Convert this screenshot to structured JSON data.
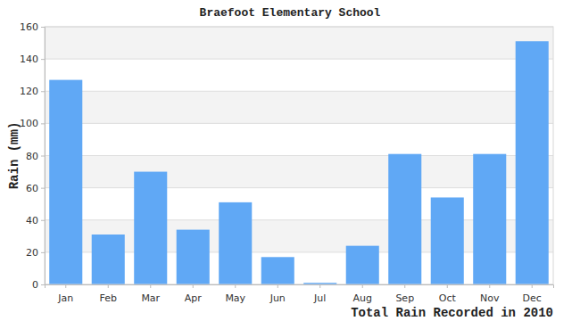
{
  "chart_data": {
    "type": "bar",
    "title": "Braefoot Elementary School",
    "x_label": "Total Rain Recorded in 2010",
    "y_label": "Rain (mm)",
    "categories": [
      "Jan",
      "Feb",
      "Mar",
      "Apr",
      "May",
      "Jun",
      "Jul",
      "Aug",
      "Sep",
      "Oct",
      "Nov",
      "Dec"
    ],
    "values": [
      127,
      31,
      70,
      34,
      51,
      17,
      1,
      24,
      81,
      54,
      81,
      151
    ],
    "color": "#60a8f5",
    "ylim": [
      0,
      160
    ],
    "yticks": [
      0,
      20,
      40,
      60,
      80,
      100,
      120,
      140,
      160
    ],
    "grid": true
  }
}
